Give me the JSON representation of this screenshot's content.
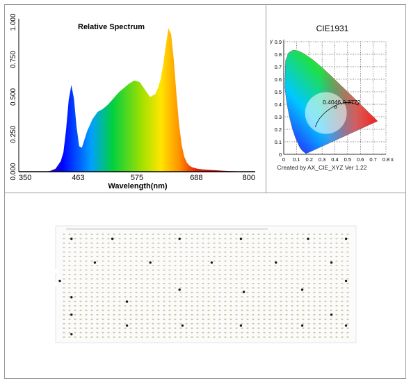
{
  "spectrum": {
    "title": "Relative Spectrum",
    "xlabel": "Wavelength(nm)",
    "colors": {
      "red": "#c00000",
      "yellow": "#ffe600",
      "blue": "#0000ff",
      "dark": "#222222"
    },
    "chart_data": {
      "type": "area",
      "title": "Relative Spectrum",
      "xlabel": "Wavelength(nm)",
      "ylabel": "",
      "xlim": [
        350,
        800
      ],
      "ylim": [
        0,
        1.0
      ],
      "x_ticks": [
        "350",
        "463",
        "575",
        "688",
        "800"
      ],
      "y_ticks": [
        "0.000",
        "0.250",
        "0.500",
        "0.750",
        "1.000"
      ],
      "x": [
        400,
        410,
        420,
        430,
        435,
        440,
        445,
        450,
        455,
        460,
        465,
        470,
        480,
        490,
        500,
        510,
        520,
        530,
        540,
        550,
        560,
        570,
        580,
        590,
        600,
        610,
        615,
        620,
        625,
        630,
        635,
        640,
        645,
        650,
        655,
        660,
        665,
        670,
        675,
        680,
        690,
        700,
        720,
        740,
        760,
        780,
        800
      ],
      "values": [
        0.0,
        0.005,
        0.02,
        0.07,
        0.13,
        0.28,
        0.48,
        0.58,
        0.49,
        0.3,
        0.17,
        0.16,
        0.27,
        0.35,
        0.4,
        0.42,
        0.45,
        0.49,
        0.53,
        0.56,
        0.59,
        0.61,
        0.6,
        0.55,
        0.5,
        0.52,
        0.56,
        0.62,
        0.72,
        0.85,
        0.96,
        0.92,
        0.75,
        0.52,
        0.32,
        0.18,
        0.1,
        0.06,
        0.04,
        0.03,
        0.02,
        0.015,
        0.01,
        0.006,
        0.003,
        0.001,
        0.0
      ]
    }
  },
  "cie": {
    "title": "CIE1931",
    "y_axis_label": "y",
    "x_axis_label": "x",
    "point_label": "0.4046,0.3772",
    "footer": "Created by AX_CIE_XYZ Ver 1.22",
    "chart_data": {
      "type": "scatter",
      "title": "CIE1931",
      "xlabel": "x",
      "ylabel": "y",
      "xlim": [
        0,
        0.8
      ],
      "ylim": [
        0,
        0.9
      ],
      "x_ticks": [
        "0",
        "0.1",
        "0.2",
        "0.3",
        "0.4",
        "0.5",
        "0.6",
        "0.7",
        "0.8"
      ],
      "y_ticks": [
        "0",
        "0.1",
        "0.2",
        "0.3",
        "0.4",
        "0.5",
        "0.6",
        "0.7",
        "0.8",
        "0.9"
      ],
      "points": [
        {
          "x": 0.4046,
          "y": 0.3772,
          "label": "0.4046,0.3772"
        }
      ],
      "locus": [
        [
          0.1741,
          0.005
        ],
        [
          0.144,
          0.0297
        ],
        [
          0.1241,
          0.0578
        ],
        [
          0.0913,
          0.1327
        ],
        [
          0.0687,
          0.2007
        ],
        [
          0.0454,
          0.295
        ],
        [
          0.0235,
          0.4127
        ],
        [
          0.0082,
          0.5384
        ],
        [
          0.0139,
          0.7502
        ],
        [
          0.0389,
          0.812
        ],
        [
          0.0743,
          0.8338
        ],
        [
          0.1142,
          0.8262
        ],
        [
          0.1547,
          0.8059
        ],
        [
          0.2296,
          0.7543
        ],
        [
          0.3016,
          0.6923
        ],
        [
          0.3731,
          0.6245
        ],
        [
          0.4441,
          0.5547
        ],
        [
          0.5125,
          0.4866
        ],
        [
          0.5752,
          0.4242
        ],
        [
          0.627,
          0.3725
        ],
        [
          0.6658,
          0.334
        ],
        [
          0.7079,
          0.292
        ],
        [
          0.7347,
          0.2653
        ]
      ],
      "planckian": [
        [
          0.5856,
          0.3932
        ],
        [
          0.5267,
          0.4133
        ],
        [
          0.4769,
          0.4137
        ],
        [
          0.4369,
          0.4041
        ],
        [
          0.4053,
          0.3907
        ],
        [
          0.3805,
          0.3768
        ],
        [
          0.3608,
          0.3636
        ],
        [
          0.3451,
          0.3516
        ],
        [
          0.3325,
          0.3411
        ],
        [
          0.3221,
          0.3318
        ],
        [
          0.3135,
          0.3236
        ],
        [
          0.3064,
          0.3165
        ],
        [
          0.2997,
          0.309
        ],
        [
          0.294,
          0.302
        ],
        [
          0.288,
          0.295
        ],
        [
          0.282,
          0.288
        ],
        [
          0.276,
          0.28
        ],
        [
          0.27,
          0.27
        ],
        [
          0.264,
          0.259
        ],
        [
          0.258,
          0.246
        ],
        [
          0.252,
          0.232
        ],
        [
          0.246,
          0.218
        ]
      ]
    }
  },
  "board": {
    "colors": {
      "board": "#fbfbfb",
      "led": "#c9bf9a",
      "via": "#1a1a1a",
      "edge": "#e6e6e6"
    },
    "rows": 24,
    "cols": 52
  }
}
